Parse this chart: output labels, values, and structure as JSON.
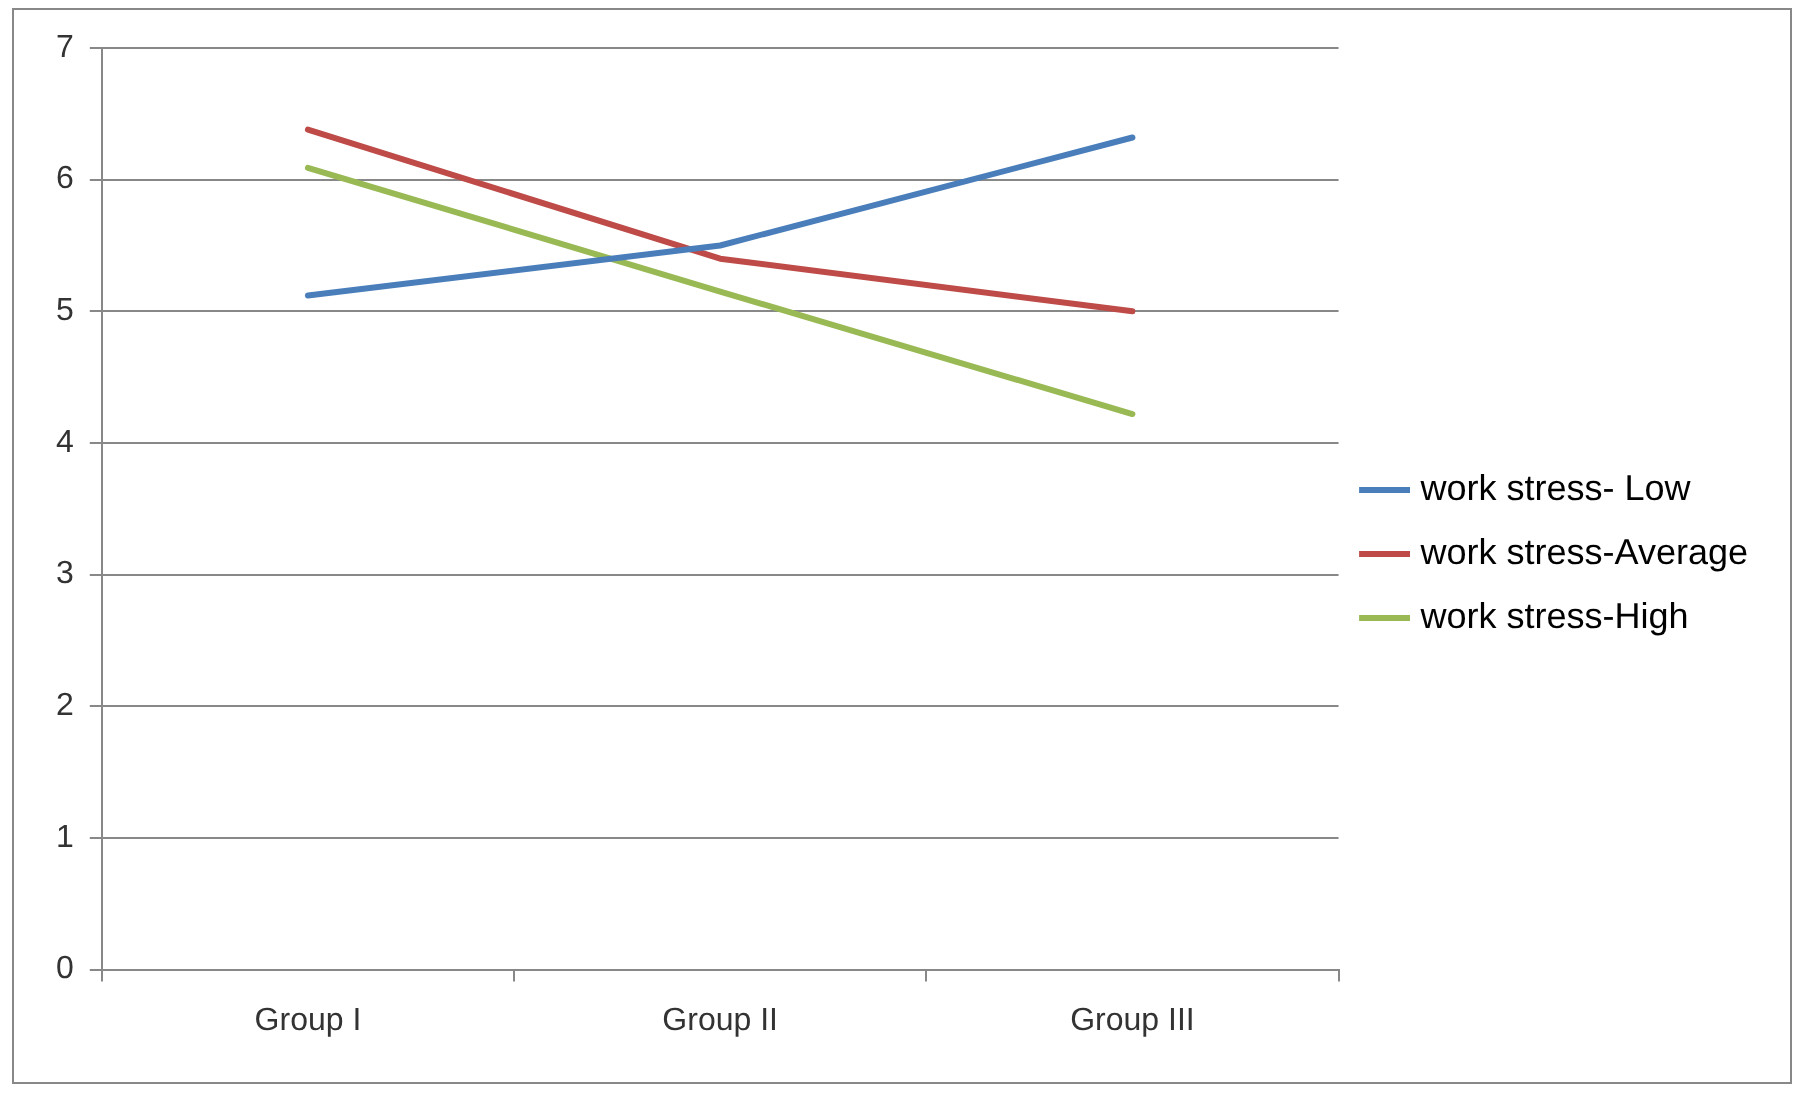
{
  "chart_data": {
    "type": "line",
    "categories": [
      "Group I",
      "Group II",
      "Group III"
    ],
    "series": [
      {
        "name": "work stress- Low",
        "color": "#4a7ebb",
        "values": [
          5.12,
          5.5,
          6.32
        ]
      },
      {
        "name": "work stress-Average",
        "color": "#be4b48",
        "values": [
          6.38,
          5.4,
          5.0
        ]
      },
      {
        "name": "work stress-High",
        "color": "#98b954",
        "values": [
          6.09,
          5.15,
          4.22
        ]
      }
    ],
    "ylim": [
      0,
      7
    ],
    "yticks": [
      0,
      1,
      2,
      3,
      4,
      5,
      6,
      7
    ],
    "grid": "y",
    "legend": "right",
    "marker": "none",
    "line_style": "solid"
  }
}
